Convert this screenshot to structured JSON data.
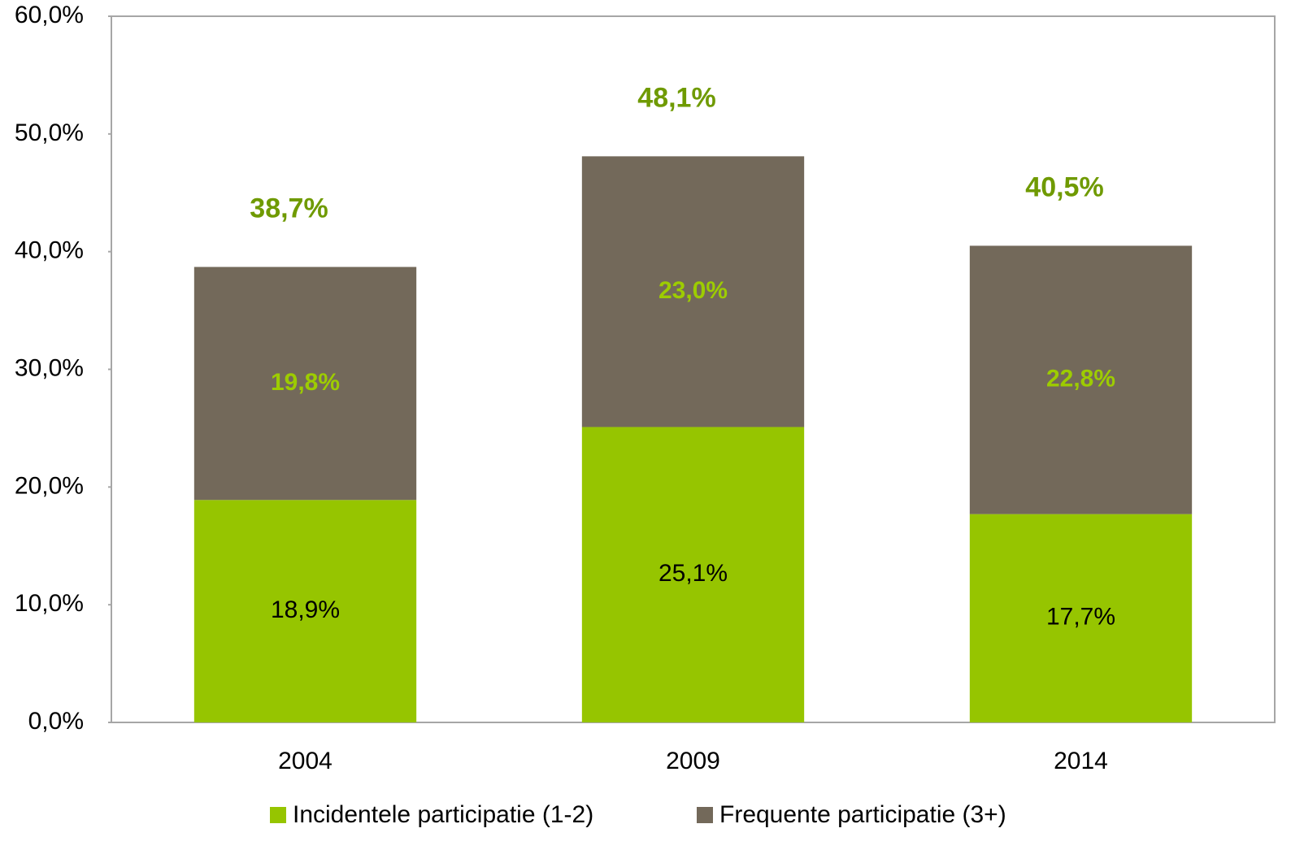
{
  "chart_data": {
    "type": "stacked_bar",
    "categories": [
      "2004",
      "2009",
      "2014"
    ],
    "series": [
      {
        "name": "Incidentele participatie (1-2)",
        "color": "#96c500",
        "values": [
          18.9,
          25.1,
          17.7
        ],
        "value_labels": [
          "18,9%",
          "25,1%",
          "17,7%"
        ],
        "label_color": "#000000"
      },
      {
        "name": "Frequente participatie (3+)",
        "color": "#73695a",
        "values": [
          19.8,
          23.0,
          22.8
        ],
        "value_labels": [
          "19,8%",
          "23,0%",
          "22,8%"
        ],
        "label_color": "#9dcc00"
      }
    ],
    "totals": [
      38.7,
      48.1,
      40.5
    ],
    "total_labels": [
      "38,7%",
      "48,1%",
      "40,5%"
    ],
    "total_color": "#6f9a00",
    "ylim": [
      0,
      60
    ],
    "yticks": [
      {
        "value": 0,
        "label": "0,0%"
      },
      {
        "value": 10,
        "label": "10,0%"
      },
      {
        "value": 20,
        "label": "20,0%"
      },
      {
        "value": 30,
        "label": "30,0%"
      },
      {
        "value": 40,
        "label": "40,0%"
      },
      {
        "value": 50,
        "label": "50,0%"
      },
      {
        "value": 60,
        "label": "60,0%"
      }
    ],
    "grid": false,
    "legend": "bottom"
  }
}
